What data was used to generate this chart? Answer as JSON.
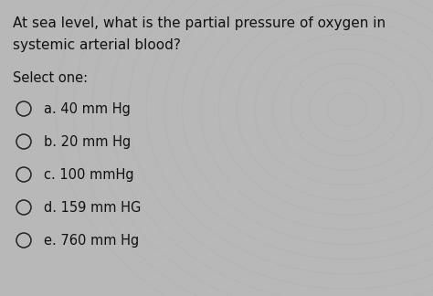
{
  "question_line1": "At sea level, what is the partial pressure of oxygen in",
  "question_line2": "systemic arterial blood?",
  "select_label": "Select one:",
  "options": [
    "a. 40 mm Hg",
    "b. 20 mm Hg",
    "c. 100 mmHg",
    "d. 159 mm HG",
    "e. 760 mm Hg"
  ],
  "bg_color": "#b8b8b8",
  "text_color": "#111111",
  "circle_color": "#222222",
  "question_fontsize": 11.0,
  "select_fontsize": 10.5,
  "option_fontsize": 10.5,
  "fig_width": 4.74,
  "fig_height": 3.24,
  "dpi": 100
}
